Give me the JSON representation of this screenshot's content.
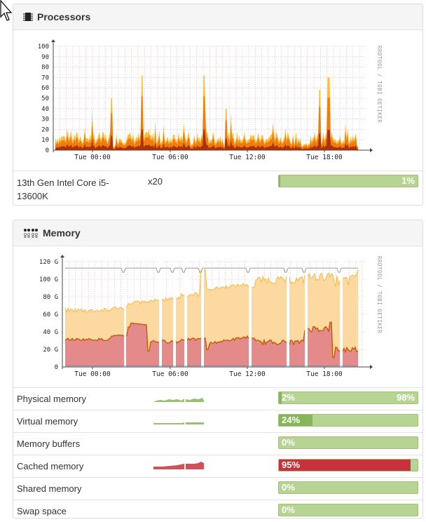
{
  "processors": {
    "title": "Processors",
    "watermark": "RRDTOOL / TOBI OETIKER",
    "x_ticks": [
      "Tue 00:00",
      "Tue 06:00",
      "Tue 12:00",
      "Tue 18:00"
    ],
    "y_ticks": [
      "0",
      "10",
      "20",
      "30",
      "40",
      "50",
      "60",
      "70",
      "80",
      "90",
      "100"
    ],
    "cpu_name": "13th Gen Intel Core i5-13600K",
    "cores": "x20",
    "usage": "1%",
    "usage_value": 0.01
  },
  "memory": {
    "title": "Memory",
    "watermark": "RRDTOOL / TOBI OETIKER",
    "x_ticks": [
      "Tue 00:00",
      "Tue 06:00",
      "Tue 12:00",
      "Tue 18:00"
    ],
    "y_ticks": [
      "0",
      "20 G",
      "40 G",
      "60 G",
      "80 G",
      "100 G",
      "120 G"
    ],
    "rows": [
      {
        "label": "Physical memory",
        "left": "2%",
        "right": "98%",
        "value": 0.02,
        "red": false,
        "spark": "physical"
      },
      {
        "label": "Virtual memory",
        "left": "24%",
        "right": "",
        "value": 0.24,
        "red": false,
        "spark": "virtual"
      },
      {
        "label": "Memory buffers",
        "left": "0%",
        "right": "",
        "value": 0.0,
        "red": false,
        "spark": ""
      },
      {
        "label": "Cached memory",
        "left": "95%",
        "right": "",
        "value": 0.95,
        "red": true,
        "spark": "cached"
      },
      {
        "label": "Shared memory",
        "left": "0%",
        "right": "",
        "value": 0.0,
        "red": false,
        "spark": ""
      },
      {
        "label": "Swap space",
        "left": "0%",
        "right": "",
        "value": 0.0,
        "red": false,
        "spark": ""
      }
    ]
  },
  "colors": {
    "cpu_dark": "#a8320a",
    "cpu_mid": "#f07c10",
    "cpu_light": "#fbbe3c",
    "mem_used": "#e48a8a",
    "mem_used_line": "#c65a00",
    "mem_cache": "#fcd9a0",
    "mem_cache_line": "#f6b94a",
    "bar_bg": "#b8d495",
    "bar_fill": "#87b55a",
    "bar_red": "#c8323d"
  }
}
